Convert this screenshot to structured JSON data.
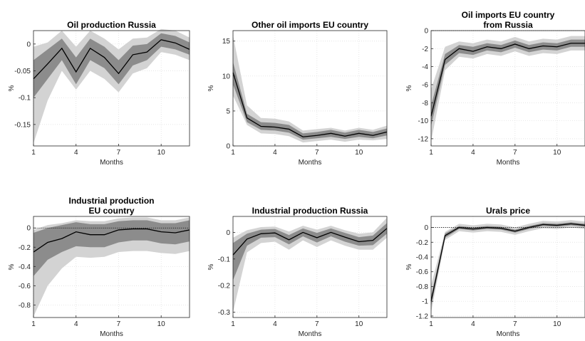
{
  "chart_data": [
    {
      "type": "line",
      "title": [
        "Oil production Russia"
      ],
      "xlabel": "Months",
      "ylabel": "%",
      "xlim": [
        1,
        12
      ],
      "ylim": [
        -0.19,
        0.025
      ],
      "xticks": [
        1,
        4,
        7,
        10
      ],
      "yticks": [
        0,
        -0.05,
        -0.1,
        -0.15
      ],
      "ytick_labels": [
        "0",
        "-0.05",
        "-0.1",
        "-0.15"
      ],
      "grid": true,
      "x": [
        1,
        2,
        3,
        4,
        5,
        6,
        7,
        8,
        9,
        10,
        11,
        12
      ],
      "series": [
        {
          "role": "median",
          "values": [
            -0.065,
            -0.037,
            -0.008,
            -0.052,
            -0.008,
            -0.025,
            -0.055,
            -0.02,
            -0.015,
            0.008,
            0.002,
            -0.01
          ]
        },
        {
          "role": "band_inner_upper",
          "values": [
            -0.03,
            -0.01,
            0.01,
            -0.025,
            0.01,
            -0.005,
            -0.03,
            -0.003,
            0.0,
            0.02,
            0.015,
            0.003
          ]
        },
        {
          "role": "band_inner_lower",
          "values": [
            -0.1,
            -0.065,
            -0.03,
            -0.075,
            -0.03,
            -0.045,
            -0.075,
            -0.04,
            -0.03,
            -0.005,
            -0.01,
            -0.02
          ]
        },
        {
          "role": "band_outer_upper",
          "values": [
            -0.005,
            0.003,
            0.025,
            -0.005,
            0.025,
            0.01,
            -0.01,
            0.01,
            0.012,
            0.028,
            0.025,
            0.012
          ]
        },
        {
          "role": "band_outer_lower",
          "values": [
            -0.185,
            -0.105,
            -0.05,
            -0.085,
            -0.05,
            -0.065,
            -0.09,
            -0.055,
            -0.045,
            -0.015,
            -0.02,
            -0.03
          ]
        }
      ]
    },
    {
      "type": "line",
      "title": [
        "Other oil imports EU country"
      ],
      "xlabel": "Months",
      "ylabel": "%",
      "xlim": [
        1,
        12
      ],
      "ylim": [
        0,
        16.5
      ],
      "xticks": [
        1,
        4,
        7,
        10
      ],
      "yticks": [
        0,
        5,
        10,
        15
      ],
      "ytick_labels": [
        "0",
        "5",
        "10",
        "15"
      ],
      "grid": true,
      "x": [
        1,
        2,
        3,
        4,
        5,
        6,
        7,
        8,
        9,
        10,
        11,
        12
      ],
      "series": [
        {
          "role": "median",
          "values": [
            10.5,
            4.0,
            2.8,
            2.7,
            2.4,
            1.3,
            1.5,
            1.8,
            1.4,
            1.8,
            1.5,
            2.0
          ]
        },
        {
          "role": "band_inner_upper",
          "values": [
            12.0,
            4.6,
            3.4,
            3.3,
            3.0,
            1.8,
            2.0,
            2.3,
            1.9,
            2.3,
            2.0,
            2.5
          ]
        },
        {
          "role": "band_inner_lower",
          "values": [
            8.8,
            3.4,
            2.3,
            2.2,
            1.9,
            0.9,
            1.1,
            1.3,
            1.0,
            1.3,
            1.1,
            1.5
          ]
        },
        {
          "role": "band_outer_upper",
          "values": [
            15.8,
            5.8,
            4.0,
            3.9,
            3.5,
            2.2,
            2.4,
            2.6,
            2.2,
            2.6,
            2.3,
            2.9
          ]
        },
        {
          "role": "band_outer_lower",
          "values": [
            7.2,
            3.0,
            1.8,
            1.7,
            1.4,
            0.5,
            0.7,
            0.9,
            0.6,
            0.9,
            0.8,
            1.0
          ]
        }
      ]
    },
    {
      "type": "line",
      "title": [
        "Oil imports EU country",
        "from Russia"
      ],
      "xlabel": "Months",
      "ylabel": "%",
      "xlim": [
        1,
        12
      ],
      "ylim": [
        -12.8,
        0
      ],
      "xticks": [
        1,
        4,
        7,
        10
      ],
      "yticks": [
        0,
        -2,
        -4,
        -6,
        -8,
        -10,
        -12
      ],
      "ytick_labels": [
        "0",
        "-2",
        "-4",
        "-6",
        "-8",
        "-10",
        "-12"
      ],
      "grid": true,
      "zero_line": true,
      "x": [
        1,
        2,
        3,
        4,
        5,
        6,
        7,
        8,
        9,
        10,
        11,
        12
      ],
      "series": [
        {
          "role": "median",
          "values": [
            -9.5,
            -3.2,
            -2.0,
            -2.3,
            -1.8,
            -2.0,
            -1.5,
            -2.0,
            -1.7,
            -1.8,
            -1.4,
            -1.4
          ]
        },
        {
          "role": "band_inner_upper",
          "values": [
            -8.3,
            -2.6,
            -1.6,
            -1.8,
            -1.4,
            -1.6,
            -1.1,
            -1.6,
            -1.3,
            -1.4,
            -1.0,
            -1.0
          ]
        },
        {
          "role": "band_inner_lower",
          "values": [
            -10.6,
            -3.8,
            -2.5,
            -2.7,
            -2.2,
            -2.4,
            -1.9,
            -2.4,
            -2.1,
            -2.2,
            -1.8,
            -1.8
          ]
        },
        {
          "role": "band_outer_upper",
          "values": [
            -6.5,
            -1.8,
            -1.2,
            -1.4,
            -1.0,
            -1.2,
            -0.7,
            -1.2,
            -0.9,
            -1.0,
            -0.6,
            -0.6
          ]
        },
        {
          "role": "band_outer_lower",
          "values": [
            -12.3,
            -4.4,
            -2.9,
            -3.1,
            -2.6,
            -2.8,
            -2.3,
            -2.8,
            -2.5,
            -2.6,
            -2.2,
            -2.2
          ]
        }
      ]
    },
    {
      "type": "line",
      "title": [
        "Industrial production",
        "EU country"
      ],
      "xlabel": "Months",
      "ylabel": "%",
      "xlim": [
        1,
        12
      ],
      "ylim": [
        -0.93,
        0.12
      ],
      "xticks": [
        1,
        4,
        7,
        10
      ],
      "yticks": [
        0,
        -0.2,
        -0.4,
        -0.6,
        -0.8
      ],
      "ytick_labels": [
        "0",
        "-0.2",
        "-0.4",
        "-0.6",
        "-0.8"
      ],
      "grid": true,
      "zero_line": true,
      "x": [
        1,
        2,
        3,
        4,
        5,
        6,
        7,
        8,
        9,
        10,
        11,
        12
      ],
      "series": [
        {
          "role": "median",
          "values": [
            -0.25,
            -0.15,
            -0.11,
            -0.04,
            -0.07,
            -0.07,
            -0.02,
            -0.01,
            -0.01,
            -0.04,
            -0.05,
            -0.02
          ]
        },
        {
          "role": "band_inner_upper",
          "values": [
            -0.05,
            0.0,
            0.03,
            0.06,
            0.04,
            0.04,
            0.07,
            0.08,
            0.08,
            0.05,
            0.05,
            0.08
          ]
        },
        {
          "role": "band_inner_lower",
          "values": [
            -0.5,
            -0.33,
            -0.25,
            -0.19,
            -0.2,
            -0.2,
            -0.15,
            -0.13,
            -0.13,
            -0.16,
            -0.17,
            -0.14
          ]
        },
        {
          "role": "band_outer_upper",
          "values": [
            -0.02,
            0.03,
            0.05,
            0.08,
            0.07,
            0.07,
            0.1,
            0.11,
            0.11,
            0.08,
            0.08,
            0.11
          ]
        },
        {
          "role": "band_outer_lower",
          "values": [
            -0.92,
            -0.6,
            -0.42,
            -0.3,
            -0.31,
            -0.3,
            -0.25,
            -0.24,
            -0.24,
            -0.26,
            -0.27,
            -0.24
          ]
        }
      ]
    },
    {
      "type": "line",
      "title": [
        "Industrial production Russia"
      ],
      "xlabel": "Months",
      "ylabel": "%",
      "xlim": [
        1,
        12
      ],
      "ylim": [
        -0.32,
        0.06
      ],
      "xticks": [
        1,
        4,
        7,
        10
      ],
      "yticks": [
        0,
        -0.1,
        -0.2,
        -0.3
      ],
      "ytick_labels": [
        "0",
        "-0.1",
        "-0.2",
        "-0.3"
      ],
      "grid": true,
      "x": [
        1,
        2,
        3,
        4,
        5,
        6,
        7,
        8,
        9,
        10,
        11,
        12
      ],
      "series": [
        {
          "role": "median",
          "values": [
            -0.085,
            -0.025,
            -0.005,
            -0.002,
            -0.028,
            0.0,
            -0.02,
            0.0,
            -0.018,
            -0.035,
            -0.03,
            0.015
          ]
        },
        {
          "role": "band_inner_upper",
          "values": [
            -0.04,
            -0.005,
            0.01,
            0.013,
            -0.01,
            0.015,
            -0.002,
            0.015,
            -0.002,
            -0.018,
            -0.012,
            0.035
          ]
        },
        {
          "role": "band_inner_lower",
          "values": [
            -0.18,
            -0.05,
            -0.02,
            -0.018,
            -0.045,
            -0.015,
            -0.038,
            -0.015,
            -0.035,
            -0.05,
            -0.048,
            -0.005
          ]
        },
        {
          "role": "band_outer_upper",
          "values": [
            -0.02,
            0.008,
            0.02,
            0.022,
            0.003,
            0.025,
            0.01,
            0.025,
            0.008,
            -0.005,
            0.0,
            0.055
          ]
        },
        {
          "role": "band_outer_lower",
          "values": [
            -0.3,
            -0.075,
            -0.04,
            -0.035,
            -0.065,
            -0.03,
            -0.055,
            -0.03,
            -0.05,
            -0.065,
            -0.065,
            -0.02
          ]
        }
      ]
    },
    {
      "type": "line",
      "title": [
        "Urals price"
      ],
      "xlabel": "Months",
      "ylabel": "%",
      "xlim": [
        1,
        12
      ],
      "ylim": [
        -1.22,
        0.15
      ],
      "xticks": [
        1,
        4,
        7,
        10
      ],
      "yticks": [
        0,
        -0.2,
        -0.4,
        -0.6,
        -0.8,
        -1,
        -1.2
      ],
      "ytick_labels": [
        "0",
        "-0.2",
        "-0.4",
        "-0.6",
        "-0.8",
        "-1",
        "-1.2"
      ],
      "grid": true,
      "zero_line": true,
      "x": [
        1,
        2,
        3,
        4,
        5,
        6,
        7,
        8,
        9,
        10,
        11,
        12
      ],
      "series": [
        {
          "role": "median",
          "values": [
            -1.0,
            -0.11,
            0.0,
            -0.02,
            0.0,
            -0.01,
            -0.05,
            0.0,
            0.04,
            0.03,
            0.05,
            0.03
          ]
        },
        {
          "role": "band_inner_upper",
          "values": [
            -0.93,
            -0.08,
            0.02,
            0.0,
            0.02,
            0.01,
            -0.03,
            0.02,
            0.06,
            0.05,
            0.07,
            0.05
          ]
        },
        {
          "role": "band_inner_lower",
          "values": [
            -1.07,
            -0.14,
            -0.02,
            -0.04,
            -0.02,
            -0.03,
            -0.07,
            -0.02,
            0.02,
            0.01,
            0.03,
            0.01
          ]
        },
        {
          "role": "band_outer_upper",
          "values": [
            -0.78,
            -0.06,
            0.05,
            0.03,
            0.05,
            0.04,
            0.0,
            0.05,
            0.09,
            0.08,
            0.1,
            0.08
          ]
        },
        {
          "role": "band_outer_lower",
          "values": [
            -1.15,
            -0.17,
            -0.05,
            -0.07,
            -0.05,
            -0.06,
            -0.1,
            -0.05,
            -0.01,
            -0.02,
            0.0,
            -0.02
          ]
        }
      ]
    }
  ],
  "colors": {
    "band_outer": "#d3d3d3",
    "band_inner": "#8c8c8c",
    "median_line": "#000000",
    "axis": "#262626"
  }
}
